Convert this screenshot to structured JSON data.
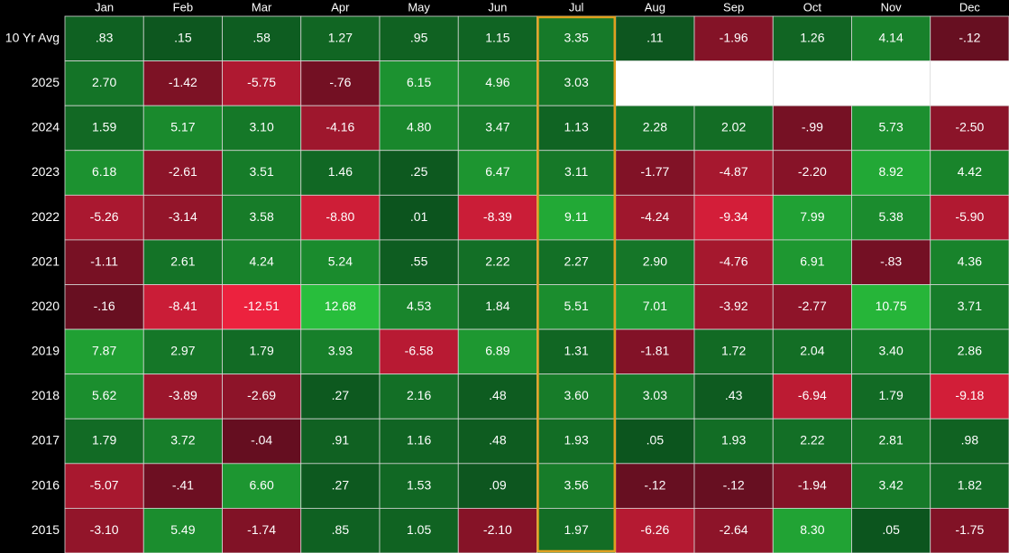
{
  "chart_data": {
    "type": "heatmap",
    "categories": [
      "Jan",
      "Feb",
      "Mar",
      "Apr",
      "May",
      "Jun",
      "Jul",
      "Aug",
      "Sep",
      "Oct",
      "Nov",
      "Dec"
    ],
    "rows": [
      "10 Yr Avg",
      "2025",
      "2024",
      "2023",
      "2022",
      "2021",
      "2020",
      "2019",
      "2018",
      "2017",
      "2016",
      "2015"
    ],
    "values": [
      [
        0.83,
        0.15,
        0.58,
        1.27,
        0.95,
        1.15,
        3.35,
        0.11,
        -1.96,
        1.26,
        4.14,
        -0.12
      ],
      [
        2.7,
        -1.42,
        -5.75,
        -0.76,
        6.15,
        4.96,
        3.03,
        null,
        null,
        null,
        null,
        null
      ],
      [
        1.59,
        5.17,
        3.1,
        -4.16,
        4.8,
        3.47,
        1.13,
        2.28,
        2.02,
        -0.99,
        5.73,
        -2.5
      ],
      [
        6.18,
        -2.61,
        3.51,
        1.46,
        0.25,
        6.47,
        3.11,
        -1.77,
        -4.87,
        -2.2,
        8.92,
        4.42
      ],
      [
        -5.26,
        -3.14,
        3.58,
        -8.8,
        0.01,
        -8.39,
        9.11,
        -4.24,
        -9.34,
        7.99,
        5.38,
        -5.9
      ],
      [
        -1.11,
        2.61,
        4.24,
        5.24,
        0.55,
        2.22,
        2.27,
        2.9,
        -4.76,
        6.91,
        -0.83,
        4.36
      ],
      [
        -0.16,
        -8.41,
        -12.51,
        12.68,
        4.53,
        1.84,
        5.51,
        7.01,
        -3.92,
        -2.77,
        10.75,
        3.71
      ],
      [
        7.87,
        2.97,
        1.79,
        3.93,
        -6.58,
        6.89,
        1.31,
        -1.81,
        1.72,
        2.04,
        3.4,
        2.86
      ],
      [
        5.62,
        -3.89,
        -2.69,
        0.27,
        2.16,
        0.48,
        3.6,
        3.03,
        0.43,
        -6.94,
        1.79,
        -9.18
      ],
      [
        1.79,
        3.72,
        -0.04,
        0.91,
        1.16,
        0.48,
        1.93,
        0.05,
        1.93,
        2.22,
        2.81,
        0.98
      ],
      [
        -5.07,
        -0.41,
        6.6,
        0.27,
        1.53,
        0.09,
        3.56,
        -0.12,
        -0.12,
        -1.94,
        3.42,
        1.82
      ],
      [
        -3.1,
        5.49,
        -1.74,
        0.85,
        1.05,
        -2.1,
        1.97,
        -6.26,
        -2.64,
        8.3,
        0.05,
        -1.75
      ]
    ],
    "value_labels": [
      [
        ".83",
        ".15",
        ".58",
        "1.27",
        ".95",
        "1.15",
        "3.35",
        ".11",
        "-1.96",
        "1.26",
        "4.14",
        "-.12"
      ],
      [
        "2.70",
        "-1.42",
        "-5.75",
        "-.76",
        "6.15",
        "4.96",
        "3.03",
        null,
        null,
        null,
        null,
        null
      ],
      [
        "1.59",
        "5.17",
        "3.10",
        "-4.16",
        "4.80",
        "3.47",
        "1.13",
        "2.28",
        "2.02",
        "-.99",
        "5.73",
        "-2.50"
      ],
      [
        "6.18",
        "-2.61",
        "3.51",
        "1.46",
        ".25",
        "6.47",
        "3.11",
        "-1.77",
        "-4.87",
        "-2.20",
        "8.92",
        "4.42"
      ],
      [
        "-5.26",
        "-3.14",
        "3.58",
        "-8.80",
        ".01",
        "-8.39",
        "9.11",
        "-4.24",
        "-9.34",
        "7.99",
        "5.38",
        "-5.90"
      ],
      [
        "-1.11",
        "2.61",
        "4.24",
        "5.24",
        ".55",
        "2.22",
        "2.27",
        "2.90",
        "-4.76",
        "6.91",
        "-.83",
        "4.36"
      ],
      [
        "-.16",
        "-8.41",
        "-12.51",
        "12.68",
        "4.53",
        "1.84",
        "5.51",
        "7.01",
        "-3.92",
        "-2.77",
        "10.75",
        "3.71"
      ],
      [
        "7.87",
        "2.97",
        "1.79",
        "3.93",
        "-6.58",
        "6.89",
        "1.31",
        "-1.81",
        "1.72",
        "2.04",
        "3.40",
        "2.86"
      ],
      [
        "5.62",
        "-3.89",
        "-2.69",
        ".27",
        "2.16",
        ".48",
        "3.60",
        "3.03",
        ".43",
        "-6.94",
        "1.79",
        "-9.18"
      ],
      [
        "1.79",
        "3.72",
        "-.04",
        ".91",
        "1.16",
        ".48",
        "1.93",
        ".05",
        "1.93",
        "2.22",
        "2.81",
        ".98"
      ],
      [
        "-5.07",
        "-.41",
        "6.60",
        ".27",
        "1.53",
        ".09",
        "3.56",
        "-.12",
        "-.12",
        "-1.94",
        "3.42",
        "1.82"
      ],
      [
        "-3.10",
        "5.49",
        "-1.74",
        ".85",
        "1.05",
        "-2.10",
        "1.97",
        "-6.26",
        "-2.64",
        "8.30",
        ".05",
        "-1.75"
      ]
    ],
    "highlight_column": "Jul"
  }
}
